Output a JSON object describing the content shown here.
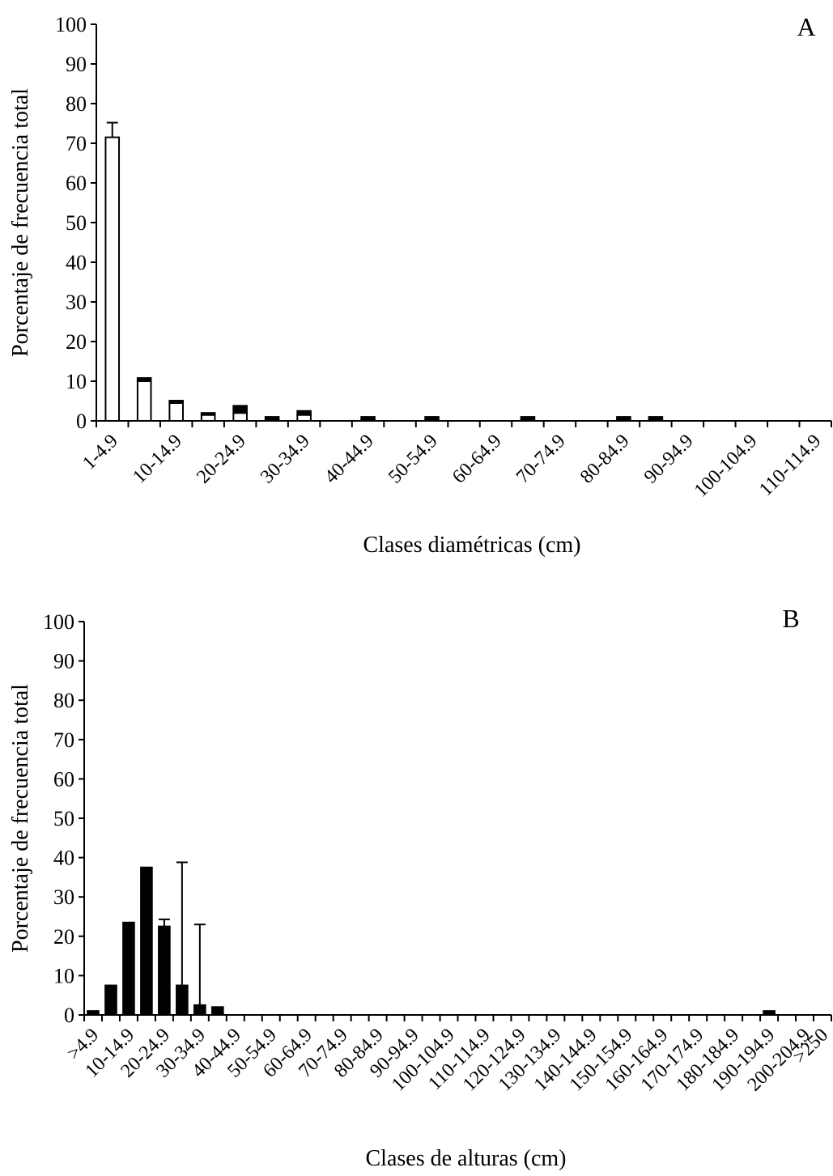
{
  "chart_data": [
    {
      "panel_label": "A",
      "type": "bar",
      "xlabel": "Clases diamétricas (cm)",
      "ylabel": "Porcentaje de frecuencia total",
      "ylim": [
        0,
        100
      ],
      "yticks": [
        0,
        10,
        20,
        30,
        40,
        50,
        60,
        70,
        80,
        90,
        100
      ],
      "grid": false,
      "categories": [
        "1-4.9",
        "5-9.9",
        "10-14.9",
        "15-19.9",
        "20-24.9",
        "25-29.9",
        "30-34.9",
        "35-39.9",
        "40-44.9",
        "45-49.9",
        "50-54.9",
        "55-59.9",
        "60-64.9",
        "65-69.9",
        "70-74.9",
        "75-79.9",
        "80-84.9",
        "85-89.9",
        "90-94.9",
        "95-99.9",
        "100-104.9",
        "105-109.9",
        "110-114.9"
      ],
      "tick_labels_shown": [
        "1-4.9",
        "",
        "10-14.9",
        "",
        "20-24.9",
        "",
        "30-34.9",
        "",
        "40-44.9",
        "",
        "50-54.9",
        "",
        "60-64.9",
        "",
        "70-74.9",
        "",
        "80-84.9",
        "",
        "90-94.9",
        "",
        "100-104.9",
        "",
        "110-114.9"
      ],
      "series": [
        {
          "fill": "#ffffff",
          "values": [
            71.5,
            10,
            4.5,
            1.5,
            2,
            0,
            1.5,
            0,
            0,
            0,
            0,
            0,
            0,
            0,
            0,
            0,
            0,
            0,
            0,
            0,
            0,
            0,
            0
          ]
        },
        {
          "fill": "#000000",
          "values": [
            0,
            0.8,
            0.6,
            0.5,
            1.8,
            1,
            1,
            0,
            1,
            0,
            1,
            0,
            0,
            1,
            0,
            0,
            1,
            1,
            0,
            0,
            0,
            0,
            0
          ]
        }
      ],
      "error_bar": {
        "category": "1-4.9",
        "upper": 75.2
      },
      "bar_edge_color": "#000000"
    },
    {
      "panel_label": "B",
      "type": "bar",
      "xlabel": "Clases de alturas (cm)",
      "ylabel": "Porcentaje de frecuencia total",
      "ylim": [
        0,
        100
      ],
      "yticks": [
        0,
        10,
        20,
        30,
        40,
        50,
        60,
        70,
        80,
        90,
        100
      ],
      "grid": false,
      "categories": [
        ">4.9",
        "5-9.9",
        "10-14.9",
        "15-19.9",
        "20-24.9",
        "25-29.9",
        "30-34.9",
        "35-39.9",
        "40-44.9",
        "45-49.9",
        "50-54.9",
        "55-59.9",
        "60-64.9",
        "65-69.9",
        "70-74.9",
        "75-79.9",
        "80-84.9",
        "85-89.9",
        "90-94.9",
        "95-99.9",
        "100-104.9",
        "105-109.9",
        "110-114.9",
        "115-119.9",
        "120-124.9",
        "125-129.9",
        "130-134.9",
        "135-139.9",
        "140-144.9",
        "145-149.9",
        "150-154.9",
        "155-159.9",
        "160-164.9",
        "165-169.9",
        "170-174.9",
        "175-179.9",
        "180-184.9",
        "185-189.9",
        "190-194.9",
        "195-199.9",
        "200-204.9",
        ">250"
      ],
      "tick_labels_shown": [
        ">4.9",
        "",
        "10-14.9",
        "",
        "20-24.9",
        "",
        "30-34.9",
        "",
        "40-44.9",
        "",
        "50-54.9",
        "",
        "60-64.9",
        "",
        "70-74.9",
        "",
        "80-84.9",
        "",
        "90-94.9",
        "",
        "100-104.9",
        "",
        "110-114.9",
        "",
        "120-124.9",
        "",
        "130-134.9",
        "",
        "140-144.9",
        "",
        "150-154.9",
        "",
        "160-164.9",
        "",
        "170-174.9",
        "",
        "180-184.9",
        "",
        "190-194.9",
        "",
        "200-204.9",
        ">250"
      ],
      "series": [
        {
          "fill": "#000000",
          "values": [
            1,
            7.5,
            23.5,
            37.5,
            22.5,
            7.5,
            2.5,
            2,
            0,
            0,
            0,
            0,
            0,
            0,
            0,
            0,
            0,
            0,
            0,
            0,
            0,
            0,
            0,
            0,
            0,
            0,
            0,
            0,
            0,
            0,
            0,
            0,
            0,
            0,
            0,
            0,
            0,
            0,
            1,
            0,
            0,
            0
          ]
        }
      ],
      "error_bars": [
        {
          "category": "20-24.9",
          "upper": 24.3
        },
        {
          "category": "25-29.9",
          "upper": 38.8
        },
        {
          "category": "30-34.9",
          "upper": 23
        }
      ],
      "bar_edge_color": "#000000"
    }
  ]
}
